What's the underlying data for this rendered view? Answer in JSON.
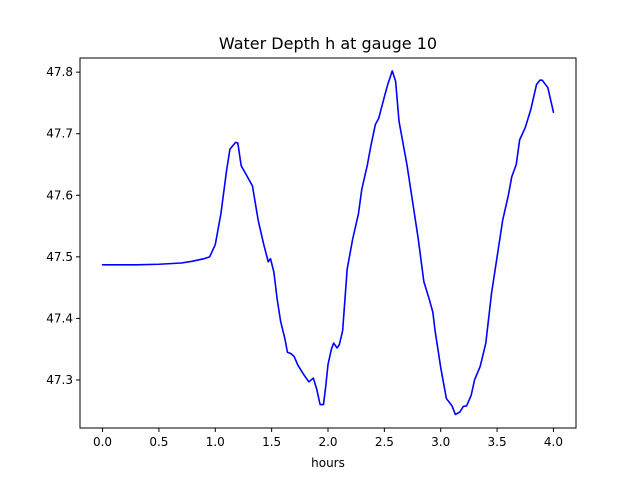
{
  "chart_data": {
    "type": "line",
    "title": "Water Depth h at gauge 10",
    "xlabel": "hours",
    "ylabel": "",
    "xlim": [
      -0.2,
      4.2
    ],
    "ylim": [
      47.222,
      47.823
    ],
    "xticks": [
      "0.0",
      "0.5",
      "1.0",
      "1.5",
      "2.0",
      "2.5",
      "3.0",
      "3.5",
      "4.0"
    ],
    "yticks": [
      "47.3",
      "47.4",
      "47.5",
      "47.6",
      "47.7",
      "47.8"
    ],
    "grid": false,
    "series": [
      {
        "color": "#0000ff",
        "points": [
          [
            0.0,
            47.487
          ],
          [
            0.3,
            47.487
          ],
          [
            0.5,
            47.488
          ],
          [
            0.7,
            47.49
          ],
          [
            0.8,
            47.493
          ],
          [
            0.9,
            47.497
          ],
          [
            0.95,
            47.5
          ],
          [
            1.0,
            47.52
          ],
          [
            1.05,
            47.57
          ],
          [
            1.1,
            47.64
          ],
          [
            1.13,
            47.675
          ],
          [
            1.18,
            47.686
          ],
          [
            1.2,
            47.685
          ],
          [
            1.23,
            47.648
          ],
          [
            1.27,
            47.635
          ],
          [
            1.33,
            47.615
          ],
          [
            1.38,
            47.56
          ],
          [
            1.43,
            47.52
          ],
          [
            1.47,
            47.492
          ],
          [
            1.49,
            47.497
          ],
          [
            1.52,
            47.475
          ],
          [
            1.55,
            47.43
          ],
          [
            1.58,
            47.395
          ],
          [
            1.62,
            47.365
          ],
          [
            1.64,
            47.345
          ],
          [
            1.67,
            47.343
          ],
          [
            1.7,
            47.338
          ],
          [
            1.73,
            47.325
          ],
          [
            1.78,
            47.31
          ],
          [
            1.83,
            47.297
          ],
          [
            1.87,
            47.303
          ],
          [
            1.9,
            47.285
          ],
          [
            1.93,
            47.26
          ],
          [
            1.96,
            47.26
          ],
          [
            1.98,
            47.29
          ],
          [
            2.0,
            47.325
          ],
          [
            2.03,
            47.35
          ],
          [
            2.05,
            47.36
          ],
          [
            2.08,
            47.352
          ],
          [
            2.1,
            47.357
          ],
          [
            2.13,
            47.38
          ],
          [
            2.17,
            47.48
          ],
          [
            2.22,
            47.53
          ],
          [
            2.27,
            47.57
          ],
          [
            2.3,
            47.61
          ],
          [
            2.35,
            47.65
          ],
          [
            2.38,
            47.68
          ],
          [
            2.42,
            47.715
          ],
          [
            2.45,
            47.725
          ],
          [
            2.5,
            47.76
          ],
          [
            2.53,
            47.78
          ],
          [
            2.57,
            47.802
          ],
          [
            2.6,
            47.785
          ],
          [
            2.63,
            47.72
          ],
          [
            2.7,
            47.65
          ],
          [
            2.75,
            47.59
          ],
          [
            2.8,
            47.53
          ],
          [
            2.85,
            47.46
          ],
          [
            2.9,
            47.43
          ],
          [
            2.93,
            47.41
          ],
          [
            2.95,
            47.38
          ],
          [
            3.0,
            47.32
          ],
          [
            3.05,
            47.27
          ],
          [
            3.1,
            47.258
          ],
          [
            3.13,
            47.244
          ],
          [
            3.17,
            47.248
          ],
          [
            3.2,
            47.257
          ],
          [
            3.23,
            47.258
          ],
          [
            3.27,
            47.275
          ],
          [
            3.3,
            47.3
          ],
          [
            3.35,
            47.322
          ],
          [
            3.4,
            47.36
          ],
          [
            3.45,
            47.44
          ],
          [
            3.5,
            47.5
          ],
          [
            3.55,
            47.56
          ],
          [
            3.6,
            47.6
          ],
          [
            3.63,
            47.63
          ],
          [
            3.67,
            47.65
          ],
          [
            3.7,
            47.69
          ],
          [
            3.75,
            47.71
          ],
          [
            3.8,
            47.74
          ],
          [
            3.85,
            47.78
          ],
          [
            3.88,
            47.787
          ],
          [
            3.9,
            47.787
          ],
          [
            3.95,
            47.775
          ],
          [
            4.0,
            47.735
          ]
        ]
      }
    ]
  }
}
